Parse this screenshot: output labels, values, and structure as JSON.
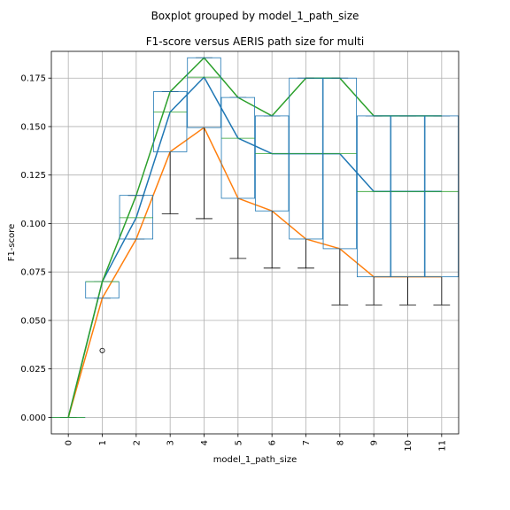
{
  "chart_data": {
    "type": "boxplot",
    "suptitle": "Boxplot grouped by model_1_path_size",
    "title": "F1-score versus AERIS path size for multi",
    "xlabel": "model_1_path_size",
    "ylabel": "F1-score",
    "categories": [
      "0",
      "1",
      "2",
      "3",
      "4",
      "5",
      "6",
      "7",
      "8",
      "9",
      "10",
      "11"
    ],
    "ylim": [
      -0.0085,
      0.1888
    ],
    "yticks": [
      "0.000",
      "0.025",
      "0.050",
      "0.075",
      "0.100",
      "0.125",
      "0.150",
      "0.175"
    ],
    "ytick_values": [
      0.0,
      0.025,
      0.05,
      0.075,
      0.1,
      0.125,
      0.15,
      0.175
    ],
    "grid": true,
    "boxes": [
      {
        "category": "0",
        "whislo": 0.0,
        "q1": 0.0,
        "med": 0.0,
        "q3": 0.0,
        "whishi": 0.0,
        "fliers": []
      },
      {
        "category": "1",
        "whislo": 0.0615,
        "q1": 0.0615,
        "med": 0.07,
        "q3": 0.07,
        "whishi": 0.07,
        "fliers": [
          0.0345
        ]
      },
      {
        "category": "2",
        "whislo": 0.092,
        "q1": 0.092,
        "med": 0.103,
        "q3": 0.1145,
        "whishi": 0.1145,
        "fliers": []
      },
      {
        "category": "3",
        "whislo": 0.105,
        "q1": 0.137,
        "med": 0.1575,
        "q3": 0.168,
        "whishi": 0.168,
        "fliers": []
      },
      {
        "category": "4",
        "whislo": 0.1025,
        "q1": 0.1495,
        "med": 0.1755,
        "q3": 0.1855,
        "whishi": 0.1855,
        "fliers": []
      },
      {
        "category": "5",
        "whislo": 0.082,
        "q1": 0.113,
        "med": 0.144,
        "q3": 0.165,
        "whishi": 0.165,
        "fliers": []
      },
      {
        "category": "6",
        "whislo": 0.077,
        "q1": 0.1065,
        "med": 0.136,
        "q3": 0.1555,
        "whishi": 0.1555,
        "fliers": []
      },
      {
        "category": "7",
        "whislo": 0.077,
        "q1": 0.092,
        "med": 0.136,
        "q3": 0.175,
        "whishi": 0.175,
        "fliers": []
      },
      {
        "category": "8",
        "whislo": 0.058,
        "q1": 0.087,
        "med": 0.136,
        "q3": 0.175,
        "whishi": 0.175,
        "fliers": []
      },
      {
        "category": "9",
        "whislo": 0.058,
        "q1": 0.0725,
        "med": 0.1165,
        "q3": 0.1555,
        "whishi": 0.1555,
        "fliers": []
      },
      {
        "category": "10",
        "whislo": 0.058,
        "q1": 0.0725,
        "med": 0.1165,
        "q3": 0.1555,
        "whishi": 0.1555,
        "fliers": []
      },
      {
        "category": "11",
        "whislo": 0.058,
        "q1": 0.0725,
        "med": 0.1165,
        "q3": 0.1555,
        "whishi": 0.1555,
        "fliers": []
      }
    ],
    "series": [
      {
        "color": "#1f77b4",
        "values": [
          0.0,
          0.07,
          0.103,
          0.1575,
          0.1755,
          0.144,
          0.136,
          0.136,
          0.136,
          0.1165,
          0.1165,
          0.1165
        ]
      },
      {
        "color": "#ff7f0e",
        "values": [
          0.0,
          0.0615,
          0.092,
          0.137,
          0.1495,
          0.113,
          0.1065,
          0.092,
          0.087,
          0.0725,
          0.0725,
          0.0725
        ]
      },
      {
        "color": "#2ca02c",
        "values": [
          0.0,
          0.07,
          0.1145,
          0.168,
          0.1855,
          0.165,
          0.1555,
          0.175,
          0.175,
          0.1555,
          0.1555,
          0.1555
        ]
      }
    ],
    "box_color": "#1f77b4",
    "whisker_color": "#000000",
    "median_color": "#2ca02c"
  }
}
